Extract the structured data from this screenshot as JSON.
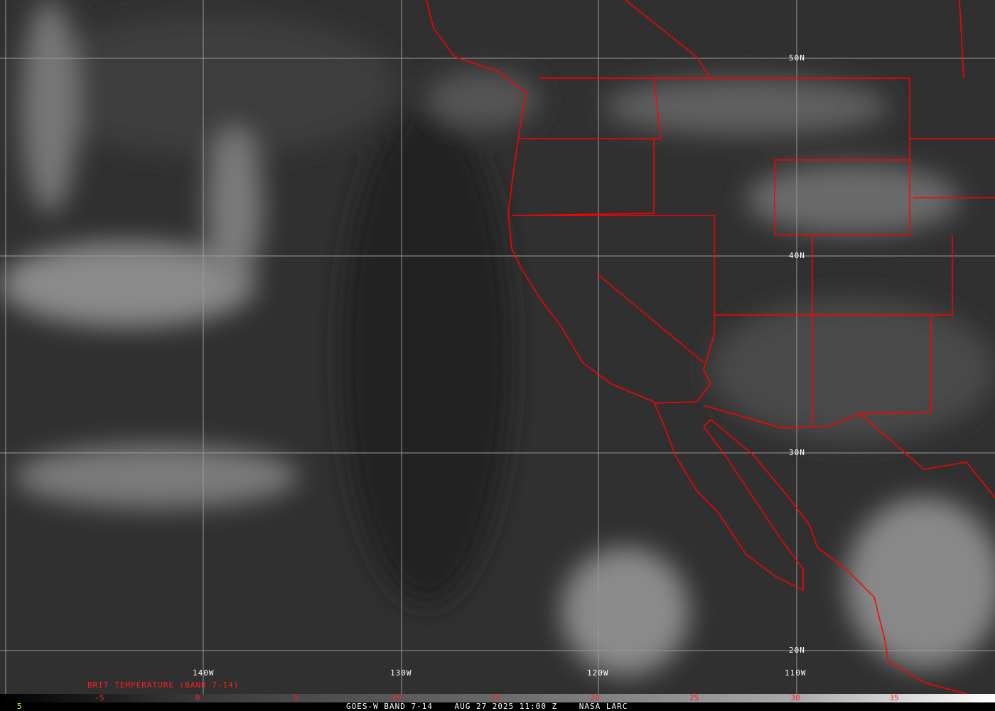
{
  "map": {
    "longitude_labels": [
      "140W",
      "130W",
      "120W",
      "110W"
    ],
    "latitude_labels": [
      "50N",
      "40N",
      "30N",
      "20N"
    ],
    "colors": {
      "borders": "#ff0000",
      "grid": "#9a9a9a",
      "labels": "#ffffff",
      "scale_text": "#ff2020",
      "corner_text": "#ffff00"
    }
  },
  "legend": {
    "title": "BRIT TEMPERATURE (BAND 7-14)",
    "ticks": [
      "-5",
      "0",
      "5",
      "10",
      "15",
      "20",
      "25",
      "30",
      "35"
    ]
  },
  "footer": {
    "corner": "5",
    "caption": "GOES-W BAND 7-14    AUG 27 2025 11:00 Z    NASA LARC"
  }
}
